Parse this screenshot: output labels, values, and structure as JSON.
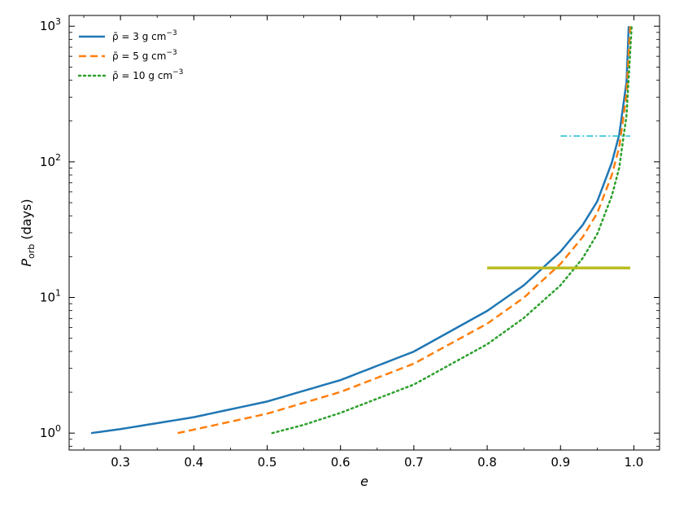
{
  "chart_data": {
    "type": "line",
    "xlabel": "e",
    "ylabel_main": "P",
    "ylabel_sub": "orb",
    "ylabel_unit": "(days)",
    "xlim": [
      0.23,
      1.035
    ],
    "ylim": [
      0.75,
      1200
    ],
    "yscale": "log",
    "grid": false,
    "legend_placement": "top-left",
    "x_ticks": [
      0.3,
      0.4,
      0.5,
      0.6,
      0.7,
      0.8,
      0.9,
      1.0
    ],
    "x_tick_labels": [
      "0.3",
      "0.4",
      "0.5",
      "0.6",
      "0.7",
      "0.8",
      "0.9",
      "1.0"
    ],
    "y_ticks": [
      {
        "value": 1,
        "base": "10",
        "exp": "0"
      },
      {
        "value": 10,
        "base": "10",
        "exp": "1"
      },
      {
        "value": 100,
        "base": "10",
        "exp": "2"
      },
      {
        "value": 1000,
        "base": "10",
        "exp": "3"
      }
    ],
    "series": [
      {
        "name": "ρ̄ = 3 g cm⁻³",
        "legend_text": "ρ̄ = 3 g cm",
        "legend_sup": "−3",
        "color": "#1f77b4",
        "style": "solid",
        "x": [
          0.26,
          0.3,
          0.4,
          0.5,
          0.6,
          0.7,
          0.8,
          0.85,
          0.9,
          0.93,
          0.95,
          0.97,
          0.98,
          0.99,
          0.993
        ],
        "y": [
          1.0,
          1.07,
          1.31,
          1.71,
          2.46,
          3.99,
          7.96,
          12.3,
          21.8,
          34.1,
          51.0,
          98.8,
          158,
          390,
          1000
        ]
      },
      {
        "name": "ρ̄ = 5 g cm⁻³",
        "legend_text": "ρ̄ = 5 g cm",
        "legend_sup": "−3",
        "color": "#ff7f0e",
        "style": "dashed",
        "x": [
          0.378,
          0.4,
          0.5,
          0.6,
          0.7,
          0.8,
          0.85,
          0.9,
          0.93,
          0.95,
          0.97,
          0.98,
          0.99,
          0.995
        ],
        "y": [
          1.0,
          1.06,
          1.39,
          2.01,
          3.25,
          6.41,
          9.96,
          17.7,
          27.8,
          41.8,
          80.2,
          128,
          318,
          1000
        ]
      },
      {
        "name": "ρ̄ = 10 g cm⁻³",
        "legend_text": "ρ̄ = 10 g cm",
        "legend_sup": "−3",
        "color": "#2ca02c",
        "style": "dotted",
        "x": [
          0.507,
          0.55,
          0.6,
          0.7,
          0.8,
          0.85,
          0.9,
          0.93,
          0.95,
          0.97,
          0.98,
          0.99,
          0.997
        ],
        "y": [
          1.0,
          1.15,
          1.41,
          2.28,
          4.52,
          7.06,
          12.3,
          19.4,
          29.3,
          56.3,
          90.3,
          221,
          1000
        ]
      }
    ],
    "horizontal_segments": [
      {
        "y": 155,
        "x_start": 0.9,
        "x_end": 0.995,
        "color": "#17becf",
        "style": "dashdot"
      },
      {
        "y": 16.5,
        "x_start": 0.8,
        "x_end": 0.995,
        "color": "#bcbd22",
        "style": "solid"
      }
    ]
  }
}
